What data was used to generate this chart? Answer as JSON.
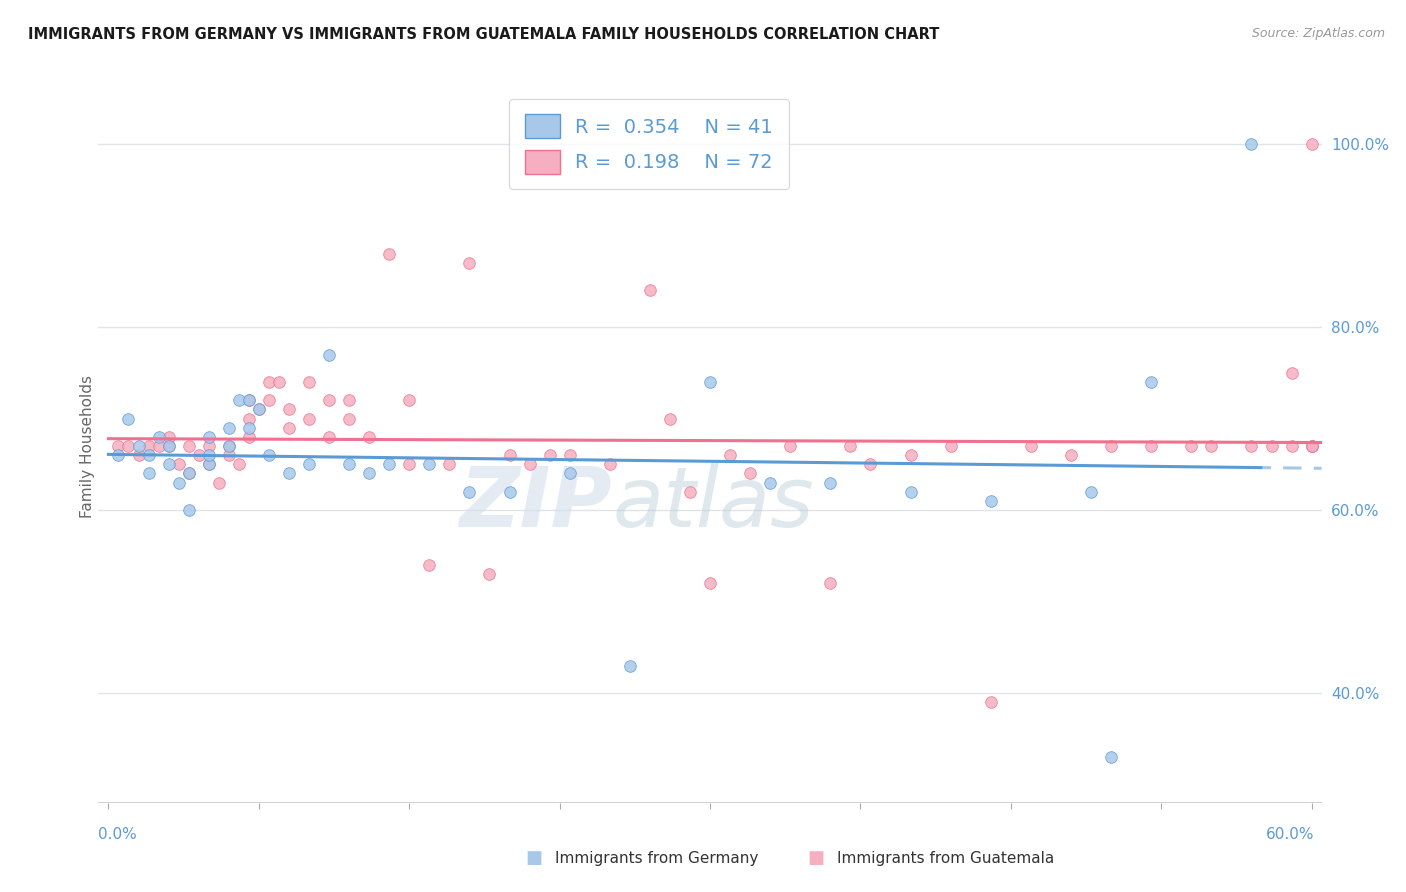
{
  "title": "IMMIGRANTS FROM GERMANY VS IMMIGRANTS FROM GUATEMALA FAMILY HOUSEHOLDS CORRELATION CHART",
  "source": "Source: ZipAtlas.com",
  "ylabel": "Family Households",
  "ylabel_right_ticks": [
    "40.0%",
    "60.0%",
    "80.0%",
    "100.0%"
  ],
  "ylabel_right_vals": [
    0.4,
    0.6,
    0.8,
    1.0
  ],
  "xlim": [
    -0.005,
    0.605
  ],
  "ylim": [
    0.28,
    1.06
  ],
  "germany_color": "#a8c8ea",
  "guatemala_color": "#f5afc0",
  "germany_line_color": "#5b9bd5",
  "guatemala_line_color": "#f07090",
  "germany_R": 0.354,
  "germany_N": 41,
  "guatemala_R": 0.198,
  "guatemala_N": 72,
  "germany_scatter_x": [
    0.005,
    0.01,
    0.015,
    0.02,
    0.02,
    0.025,
    0.03,
    0.03,
    0.035,
    0.04,
    0.04,
    0.05,
    0.05,
    0.05,
    0.06,
    0.06,
    0.065,
    0.07,
    0.07,
    0.075,
    0.08,
    0.09,
    0.1,
    0.11,
    0.12,
    0.13,
    0.14,
    0.16,
    0.18,
    0.2,
    0.23,
    0.26,
    0.3,
    0.33,
    0.36,
    0.4,
    0.44,
    0.49,
    0.5,
    0.52,
    0.57
  ],
  "germany_scatter_y": [
    0.66,
    0.7,
    0.67,
    0.64,
    0.66,
    0.68,
    0.65,
    0.67,
    0.63,
    0.64,
    0.6,
    0.65,
    0.66,
    0.68,
    0.67,
    0.69,
    0.72,
    0.72,
    0.69,
    0.71,
    0.66,
    0.64,
    0.65,
    0.77,
    0.65,
    0.64,
    0.65,
    0.65,
    0.62,
    0.62,
    0.64,
    0.43,
    0.74,
    0.63,
    0.63,
    0.62,
    0.61,
    0.62,
    0.33,
    0.74,
    1.0
  ],
  "guatemala_scatter_x": [
    0.005,
    0.01,
    0.015,
    0.02,
    0.025,
    0.03,
    0.03,
    0.035,
    0.04,
    0.04,
    0.045,
    0.05,
    0.05,
    0.055,
    0.06,
    0.06,
    0.065,
    0.07,
    0.07,
    0.07,
    0.075,
    0.08,
    0.08,
    0.085,
    0.09,
    0.09,
    0.1,
    0.1,
    0.11,
    0.11,
    0.12,
    0.12,
    0.13,
    0.14,
    0.15,
    0.15,
    0.16,
    0.17,
    0.18,
    0.19,
    0.2,
    0.21,
    0.22,
    0.23,
    0.25,
    0.27,
    0.28,
    0.29,
    0.3,
    0.31,
    0.32,
    0.34,
    0.36,
    0.37,
    0.38,
    0.4,
    0.42,
    0.44,
    0.46,
    0.48,
    0.5,
    0.52,
    0.54,
    0.55,
    0.57,
    0.58,
    0.59,
    0.59,
    0.6,
    0.6,
    0.6,
    0.6
  ],
  "guatemala_scatter_y": [
    0.67,
    0.67,
    0.66,
    0.67,
    0.67,
    0.67,
    0.68,
    0.65,
    0.67,
    0.64,
    0.66,
    0.67,
    0.65,
    0.63,
    0.67,
    0.66,
    0.65,
    0.72,
    0.7,
    0.68,
    0.71,
    0.74,
    0.72,
    0.74,
    0.71,
    0.69,
    0.74,
    0.7,
    0.72,
    0.68,
    0.72,
    0.7,
    0.68,
    0.88,
    0.72,
    0.65,
    0.54,
    0.65,
    0.87,
    0.53,
    0.66,
    0.65,
    0.66,
    0.66,
    0.65,
    0.84,
    0.7,
    0.62,
    0.52,
    0.66,
    0.64,
    0.67,
    0.52,
    0.67,
    0.65,
    0.66,
    0.67,
    0.39,
    0.67,
    0.66,
    0.67,
    0.67,
    0.67,
    0.67,
    0.67,
    0.67,
    0.67,
    0.75,
    0.67,
    0.67,
    0.67,
    1.0
  ],
  "watermark_zip": "ZIP",
  "watermark_atlas": "atlas",
  "grid_color": "#e0e4e8",
  "background_color": "#ffffff",
  "tick_color": "#5b9bd5",
  "bottom_legend_germany": "Immigrants from Germany",
  "bottom_legend_guatemala": "Immigrants from Guatemala"
}
